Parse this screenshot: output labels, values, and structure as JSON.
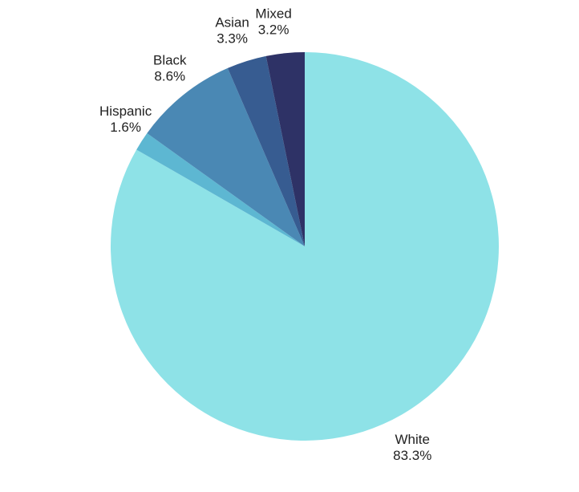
{
  "chart_data": {
    "type": "pie",
    "title": "",
    "start_angle_deg": 0,
    "direction": "clockwise",
    "legend": "none",
    "slices": [
      {
        "label": "White",
        "value": 83.3,
        "value_label": "83.3%",
        "color": "#8EE2E7"
      },
      {
        "label": "Hispanic",
        "value": 1.6,
        "value_label": "1.6%",
        "color": "#5DB7D2"
      },
      {
        "label": "Black",
        "value": 8.6,
        "value_label": "8.6%",
        "color": "#4A88B4"
      },
      {
        "label": "Asian",
        "value": 3.3,
        "value_label": "3.3%",
        "color": "#375C91"
      },
      {
        "label": "Mixed",
        "value": 3.2,
        "value_label": "3.2%",
        "color": "#2E3266"
      }
    ]
  }
}
